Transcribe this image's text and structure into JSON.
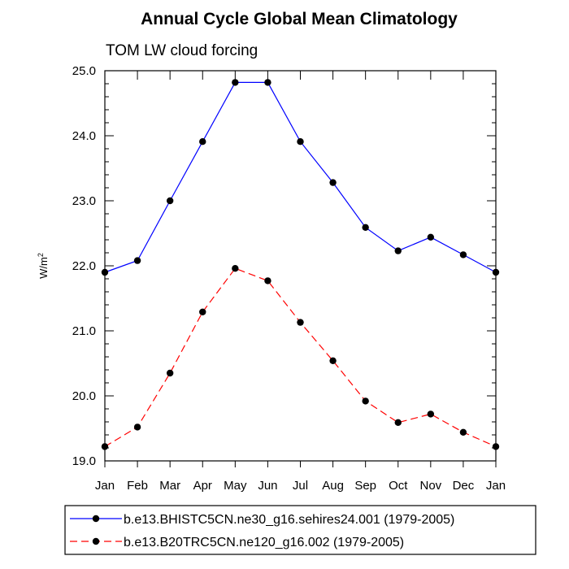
{
  "chart_data": {
    "type": "line",
    "title": "Annual Cycle Global Mean Climatology",
    "subtitle": "TOM LW cloud forcing",
    "ylabel_base": "W/m",
    "ylabel_exp": "2",
    "xlabel": "",
    "categories": [
      "Jan",
      "Feb",
      "Mar",
      "Apr",
      "May",
      "Jun",
      "Jul",
      "Aug",
      "Sep",
      "Oct",
      "Nov",
      "Dec",
      "Jan"
    ],
    "ylim": [
      19.0,
      25.0
    ],
    "yticks": [
      19.0,
      20.0,
      21.0,
      22.0,
      23.0,
      24.0,
      25.0
    ],
    "ytick_labels": [
      "19.0",
      "20.0",
      "21.0",
      "22.0",
      "23.0",
      "24.0",
      "25.0"
    ],
    "grid": false,
    "legend_position": "bottom",
    "series": [
      {
        "name": "b.e13.BHISTC5CN.ne30_g16.sehires24.001 (1979-2005)",
        "color": "#0000ff",
        "dash": "solid",
        "values": [
          21.9,
          22.08,
          23.0,
          23.91,
          24.82,
          24.82,
          23.91,
          23.28,
          22.59,
          22.23,
          22.44,
          22.17,
          21.9
        ]
      },
      {
        "name": "b.e13.B20TRC5CN.ne120_g16.002 (1979-2005)",
        "color": "#ff0000",
        "dash": "dashed",
        "values": [
          19.22,
          19.52,
          20.35,
          21.29,
          21.96,
          21.77,
          21.13,
          20.54,
          19.92,
          19.59,
          19.72,
          19.44,
          19.22
        ]
      }
    ]
  }
}
